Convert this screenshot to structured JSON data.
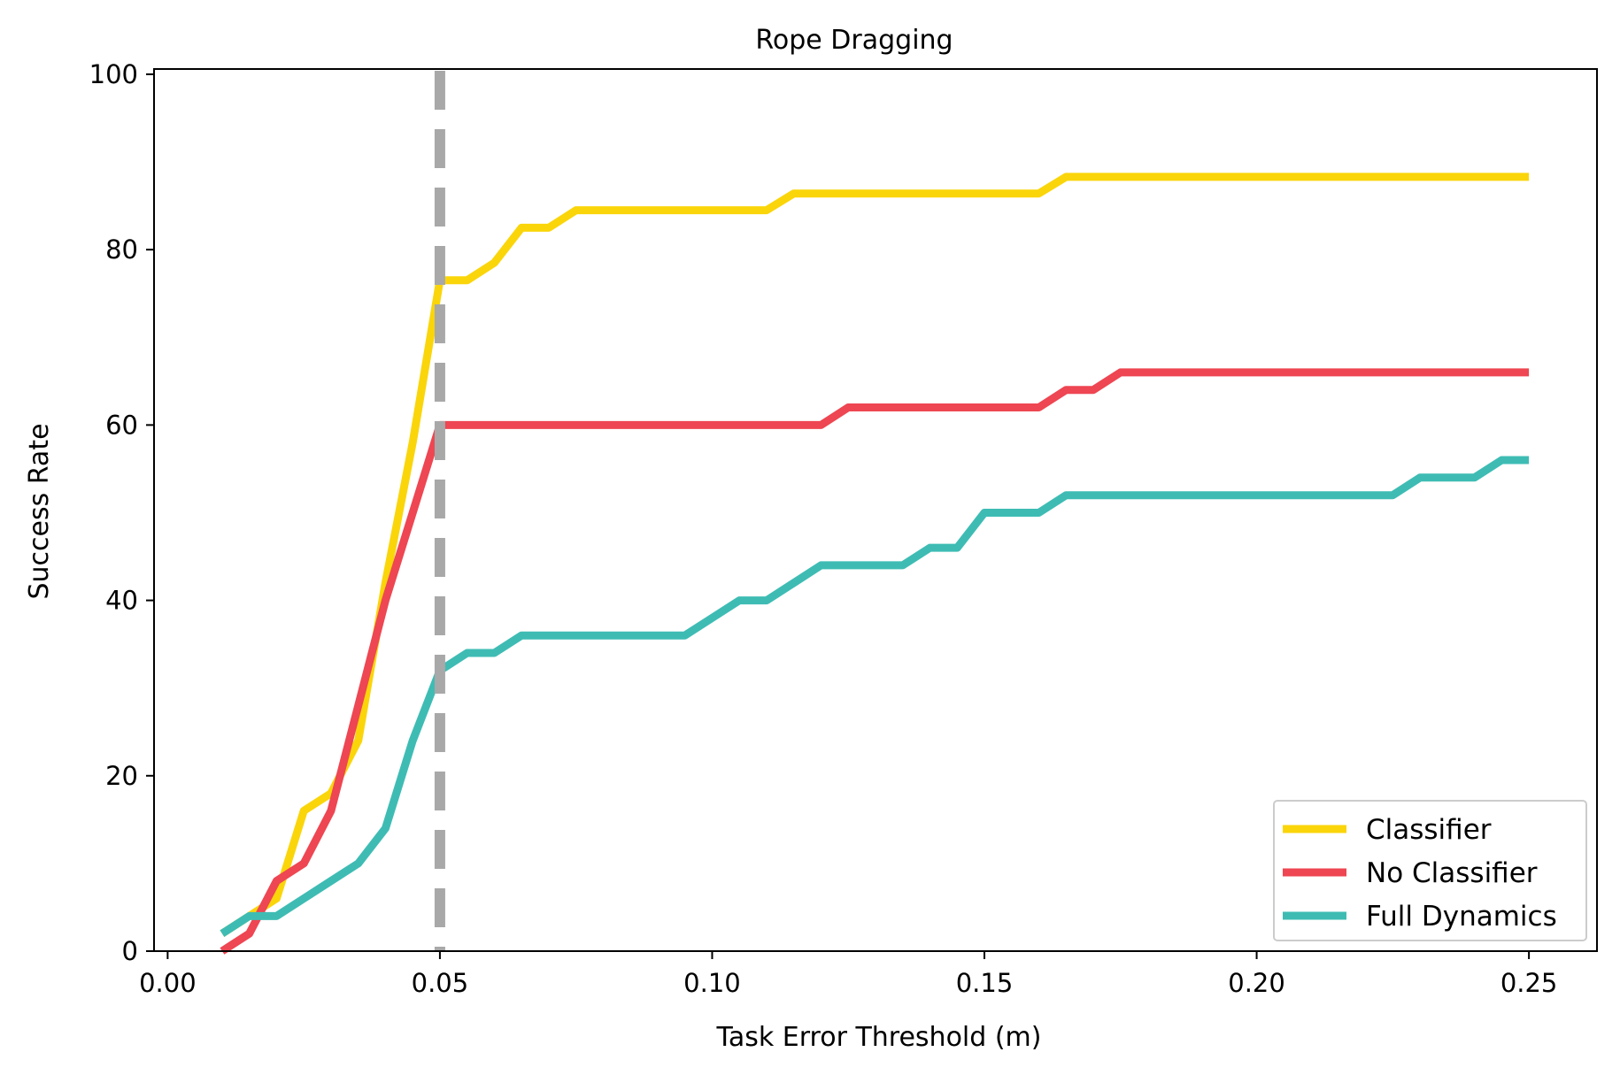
{
  "chart_data": {
    "type": "line",
    "title": "Rope Dragging",
    "xlabel": "Task Error Threshold (m)",
    "ylabel": "Success Rate",
    "xlim": [
      -0.0025,
      0.2625
    ],
    "ylim": [
      0,
      100.6
    ],
    "xticks": [
      0.0,
      0.05,
      0.1,
      0.15,
      0.2,
      0.25
    ],
    "xtick_labels": [
      "0.00",
      "0.05",
      "0.10",
      "0.15",
      "0.20",
      "0.25"
    ],
    "yticks": [
      0,
      20,
      40,
      60,
      80,
      100
    ],
    "ytick_labels": [
      "0",
      "20",
      "40",
      "60",
      "80",
      "100"
    ],
    "grid": false,
    "legend_position": "bottom-right",
    "reference_line": {
      "x": 0.05,
      "style": "dashed",
      "color": "#a8a8a8"
    },
    "series": [
      {
        "name": "Classifier",
        "color": "#fad50a",
        "x": [
          0.01,
          0.015,
          0.02,
          0.025,
          0.03,
          0.035,
          0.04,
          0.045,
          0.05,
          0.055,
          0.06,
          0.065,
          0.07,
          0.075,
          0.11,
          0.115,
          0.16,
          0.165,
          0.25
        ],
        "y": [
          2,
          4,
          6,
          16,
          18,
          24,
          42,
          58,
          76.5,
          76.5,
          78.5,
          82.5,
          82.5,
          84.5,
          84.5,
          86.4,
          86.4,
          88.3,
          88.3
        ]
      },
      {
        "name": "No Classifier",
        "color": "#ee4652",
        "x": [
          0.01,
          0.015,
          0.02,
          0.025,
          0.03,
          0.035,
          0.04,
          0.045,
          0.05,
          0.12,
          0.125,
          0.16,
          0.165,
          0.17,
          0.175,
          0.25
        ],
        "y": [
          0,
          2,
          8,
          10,
          16,
          28,
          40,
          50,
          60,
          60,
          62,
          62,
          64,
          64,
          66,
          66
        ]
      },
      {
        "name": "Full Dynamics",
        "color": "#3ebcb4",
        "x": [
          0.01,
          0.015,
          0.02,
          0.025,
          0.03,
          0.035,
          0.04,
          0.045,
          0.05,
          0.055,
          0.06,
          0.065,
          0.095,
          0.1,
          0.105,
          0.11,
          0.115,
          0.12,
          0.135,
          0.14,
          0.145,
          0.15,
          0.16,
          0.165,
          0.225,
          0.23,
          0.24,
          0.245,
          0.25
        ],
        "y": [
          2,
          4,
          4,
          6,
          8,
          10,
          14,
          24,
          32,
          34,
          34,
          36,
          36,
          38,
          40,
          40,
          42,
          44,
          44,
          46,
          46,
          50,
          50,
          52,
          52,
          54,
          54,
          56,
          56
        ]
      }
    ]
  }
}
